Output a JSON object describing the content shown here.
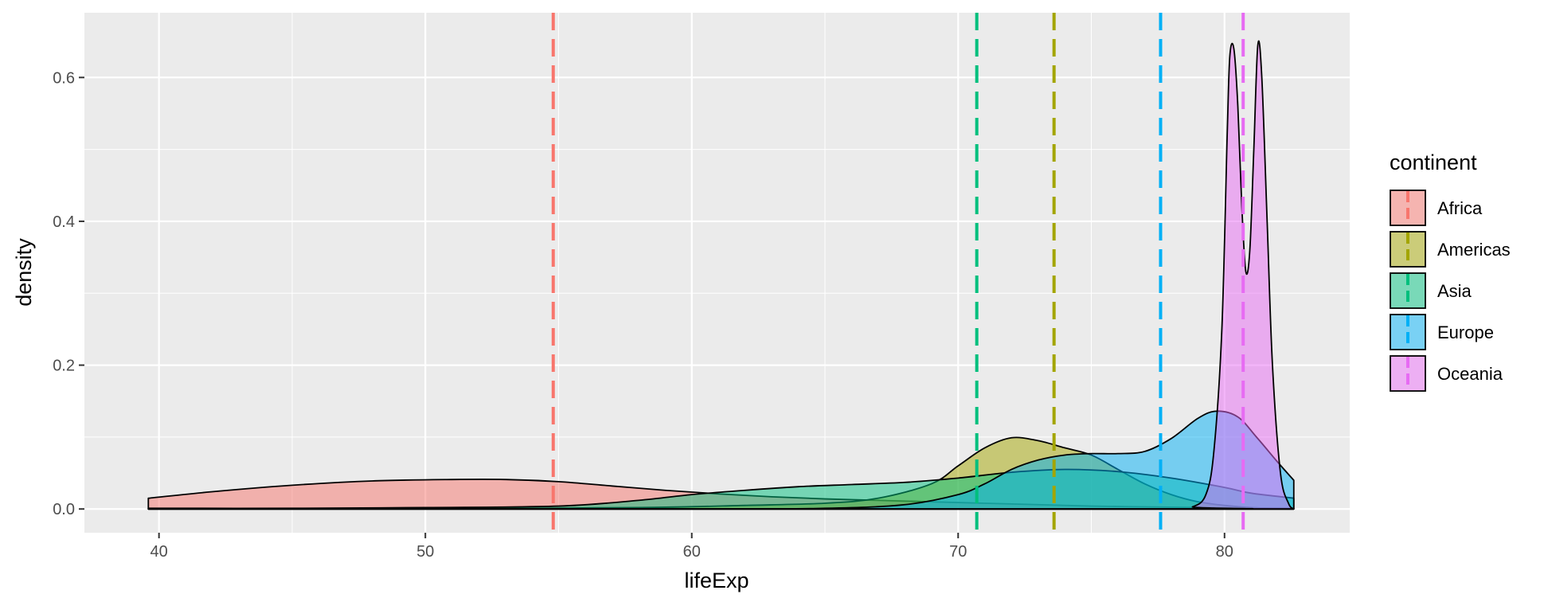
{
  "chart_data": {
    "type": "area",
    "title": "",
    "xlabel": "lifeExp",
    "ylabel": "density",
    "xlim": [
      37.2,
      84.7
    ],
    "ylim": [
      -0.033,
      0.69
    ],
    "xticks": [
      40,
      50,
      60,
      70,
      80
    ],
    "yticks": [
      0.0,
      0.2,
      0.4,
      0.6
    ],
    "ytick_labels": [
      "0.0",
      "0.2",
      "0.4",
      "0.6"
    ],
    "grid": true,
    "legend": {
      "title": "continent",
      "placement": "right"
    },
    "series": [
      {
        "name": "Africa",
        "color": "#F8766D",
        "mean": 54.8,
        "x": [
          39.6,
          42,
          45,
          48,
          51,
          53,
          55,
          57,
          59,
          61,
          63,
          65,
          67,
          69,
          71,
          73,
          75,
          77,
          79,
          82.6
        ],
        "y": [
          0.015,
          0.024,
          0.033,
          0.039,
          0.041,
          0.041,
          0.038,
          0.032,
          0.026,
          0.021,
          0.017,
          0.014,
          0.012,
          0.01,
          0.008,
          0.006,
          0.004,
          0.003,
          0.002,
          0.001
        ]
      },
      {
        "name": "Americas",
        "color": "#A3A500",
        "mean": 73.6,
        "x": [
          39.6,
          50,
          58,
          62,
          65,
          67,
          69,
          70,
          71,
          72,
          73,
          74,
          75,
          76,
          77,
          78,
          79,
          80,
          81,
          82.6
        ],
        "y": [
          0.0,
          0.0,
          0.002,
          0.005,
          0.008,
          0.015,
          0.035,
          0.06,
          0.085,
          0.099,
          0.095,
          0.085,
          0.075,
          0.055,
          0.035,
          0.02,
          0.01,
          0.005,
          0.002,
          0.0
        ]
      },
      {
        "name": "Asia",
        "color": "#00BF7D",
        "mean": 70.7,
        "x": [
          39.6,
          45,
          50,
          55,
          58,
          60,
          62,
          64,
          66,
          68,
          70,
          72,
          74,
          76,
          78,
          80,
          81,
          82.6
        ],
        "y": [
          0.001,
          0.001,
          0.002,
          0.004,
          0.012,
          0.02,
          0.026,
          0.031,
          0.034,
          0.037,
          0.043,
          0.051,
          0.055,
          0.052,
          0.043,
          0.03,
          0.022,
          0.015
        ]
      },
      {
        "name": "Europe",
        "color": "#00B0F6",
        "mean": 77.6,
        "x": [
          39.6,
          60,
          65,
          68,
          70,
          71,
          72,
          73,
          74,
          75,
          76,
          77,
          78,
          79,
          79.7,
          80.5,
          81.2,
          82,
          82.6
        ],
        "y": [
          0.0,
          0.0,
          0.001,
          0.006,
          0.02,
          0.035,
          0.055,
          0.068,
          0.075,
          0.077,
          0.077,
          0.08,
          0.098,
          0.126,
          0.136,
          0.128,
          0.1,
          0.065,
          0.04
        ]
      },
      {
        "name": "Oceania",
        "color": "#E76BF3",
        "mean": 80.7,
        "x": [
          39.6,
          78,
          78.8,
          79.3,
          79.6,
          79.9,
          80.1,
          80.2,
          80.35,
          80.5,
          80.65,
          80.8,
          80.95,
          81.1,
          81.25,
          81.4,
          81.6,
          81.8,
          82.1,
          82.4,
          82.6
        ],
        "y": [
          0.0,
          0.0,
          0.003,
          0.02,
          0.08,
          0.25,
          0.52,
          0.63,
          0.64,
          0.56,
          0.42,
          0.33,
          0.36,
          0.5,
          0.645,
          0.6,
          0.4,
          0.2,
          0.05,
          0.008,
          0.0
        ]
      }
    ]
  }
}
